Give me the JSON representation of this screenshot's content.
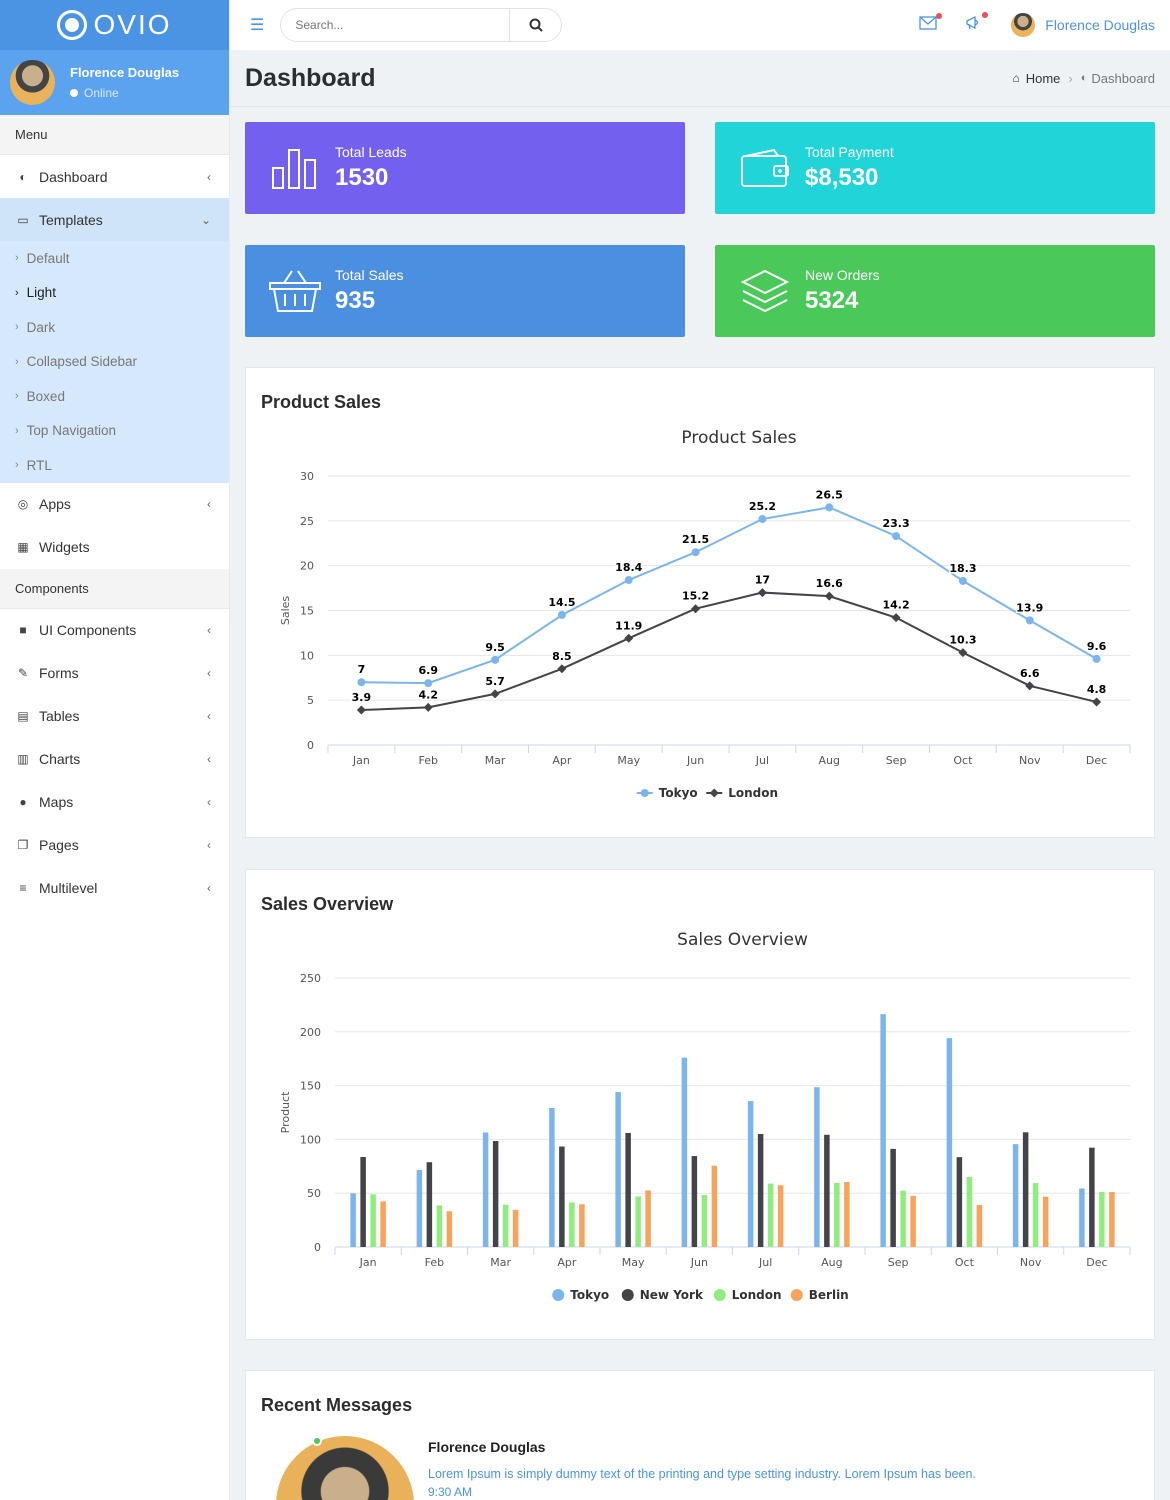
{
  "app": {
    "logo_text": "OVIO"
  },
  "user": {
    "name": "Florence Douglas",
    "status": "Online"
  },
  "sidebar": {
    "menu_header": "Menu",
    "components_header": "Components",
    "items_top": [
      {
        "label": "Dashboard",
        "icon": "dashboard-icon"
      },
      {
        "label": "Templates",
        "icon": "monitor-icon"
      }
    ],
    "templates_sub": [
      "Default",
      "Light",
      "Dark",
      "Collapsed Sidebar",
      "Boxed",
      "Top Navigation",
      "RTL"
    ],
    "items_mid": [
      {
        "label": "Apps",
        "icon": "target-icon"
      },
      {
        "label": "Widgets",
        "icon": "grid-icon"
      }
    ],
    "items_components": [
      {
        "label": "UI Components",
        "icon": "briefcase-icon"
      },
      {
        "label": "Forms",
        "icon": "edit-icon"
      },
      {
        "label": "Tables",
        "icon": "table-icon"
      },
      {
        "label": "Charts",
        "icon": "bar-chart-icon"
      },
      {
        "label": "Maps",
        "icon": "map-marker-icon"
      },
      {
        "label": "Pages",
        "icon": "copy-icon"
      },
      {
        "label": "Multilevel",
        "icon": "list-icon"
      }
    ]
  },
  "topbar": {
    "search_placeholder": "Search..."
  },
  "page": {
    "title": "Dashboard",
    "breadcrumb_home": "Home",
    "breadcrumb_current": "Dashboard"
  },
  "stats": [
    {
      "label": "Total Leads",
      "value": "1530",
      "color": "#7460ee"
    },
    {
      "label": "Total Payment",
      "value": "$8,530",
      "color": "#21d4d8"
    },
    {
      "label": "Total Sales",
      "value": "935",
      "color": "#4b8fe1"
    },
    {
      "label": "New Orders",
      "value": "5324",
      "color": "#4ac85a"
    }
  ],
  "product_sales_panel": {
    "title": "Product Sales"
  },
  "sales_overview_panel": {
    "title": "Sales Overview"
  },
  "chart_data": [
    {
      "type": "line",
      "title": "Product Sales",
      "ylabel": "Sales",
      "xlabel": "",
      "categories": [
        "Jan",
        "Feb",
        "Mar",
        "Apr",
        "May",
        "Jun",
        "Jul",
        "Aug",
        "Sep",
        "Oct",
        "Nov",
        "Dec"
      ],
      "ylim": [
        0,
        30
      ],
      "yticks": [
        0,
        5,
        10,
        15,
        20,
        25,
        30
      ],
      "legend": "bottom-center",
      "series": [
        {
          "name": "Tokyo",
          "color": "#7cb5ec",
          "values": [
            7,
            6.9,
            9.5,
            14.5,
            18.4,
            21.5,
            25.2,
            26.5,
            23.3,
            18.3,
            13.9,
            9.6
          ]
        },
        {
          "name": "London",
          "color": "#434348",
          "values": [
            3.9,
            4.2,
            5.7,
            8.5,
            11.9,
            15.2,
            17,
            16.6,
            14.2,
            10.3,
            6.6,
            4.8
          ]
        }
      ]
    },
    {
      "type": "bar",
      "title": "Sales Overview",
      "ylabel": "Product",
      "xlabel": "",
      "categories": [
        "Jan",
        "Feb",
        "Mar",
        "Apr",
        "May",
        "Jun",
        "Jul",
        "Aug",
        "Sep",
        "Oct",
        "Nov",
        "Dec"
      ],
      "ylim": [
        0,
        250
      ],
      "yticks": [
        0,
        50,
        100,
        150,
        200,
        250
      ],
      "legend": "bottom-center",
      "series": [
        {
          "name": "Tokyo",
          "color": "#7cb5ec",
          "values": [
            49.9,
            71.5,
            106.4,
            129.2,
            144,
            176,
            135.6,
            148.5,
            216.4,
            194.1,
            95.6,
            54.4
          ]
        },
        {
          "name": "New York",
          "color": "#434348",
          "values": [
            83.6,
            78.8,
            98.5,
            93.4,
            106,
            84.5,
            105,
            104.3,
            91.2,
            83.5,
            106.6,
            92.3
          ]
        },
        {
          "name": "London",
          "color": "#90ed7d",
          "values": [
            48.9,
            38.8,
            39.3,
            41.4,
            47,
            48.3,
            59,
            59.6,
            52.4,
            65.2,
            59.3,
            51.2
          ]
        },
        {
          "name": "Berlin",
          "color": "#f7a35c",
          "values": [
            42.4,
            33.2,
            34.5,
            39.7,
            52.6,
            75.5,
            57.4,
            60.4,
            47.6,
            39.1,
            46.8,
            51.1
          ]
        }
      ]
    }
  ],
  "recent_messages": {
    "title": "Recent Messages",
    "items": [
      {
        "name": "Florence Douglas",
        "text": "Lorem Ipsum is simply dummy text of the printing and type setting industry. Lorem Ipsum has been.",
        "time": "9:30 AM"
      }
    ]
  }
}
